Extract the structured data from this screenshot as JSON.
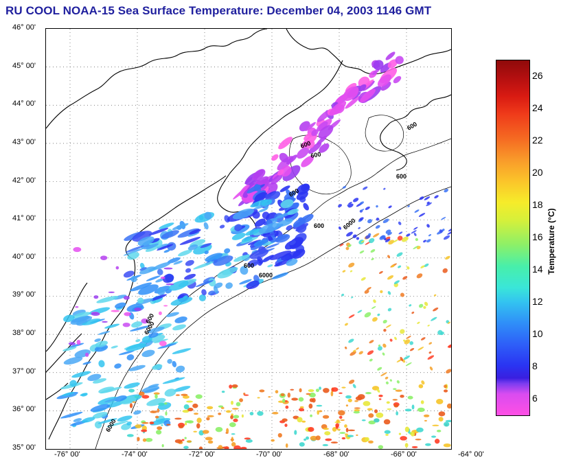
{
  "title": "RU COOL  NOAA-15  Sea Surface Temperature:  December 04, 2003 1146 GMT",
  "lat_labels": [
    "46° 00'",
    "45° 00'",
    "44° 00'",
    "43° 00'",
    "42° 00'",
    "41° 00'",
    "40° 00'",
    "39° 00'",
    "38° 00'",
    "37° 00'",
    "36° 00'",
    "35° 00'"
  ],
  "lon_labels": [
    "-76° 00'",
    "-74° 00'",
    "-72° 00'",
    "-70° 00'",
    "-68° 00'",
    "-66° 00'",
    "-64° 00'"
  ],
  "bathymetry_labels": [
    "600",
    "6000"
  ],
  "colorbar": {
    "title": "Temperature (°C)",
    "ticks": [
      "26",
      "24",
      "22",
      "20",
      "18",
      "16",
      "14",
      "12",
      "10",
      "8",
      "6"
    ],
    "colors": {
      "cold": "#ff4fe4",
      "mid": "#2a34f2",
      "warm": "#8f0a0a"
    }
  }
}
